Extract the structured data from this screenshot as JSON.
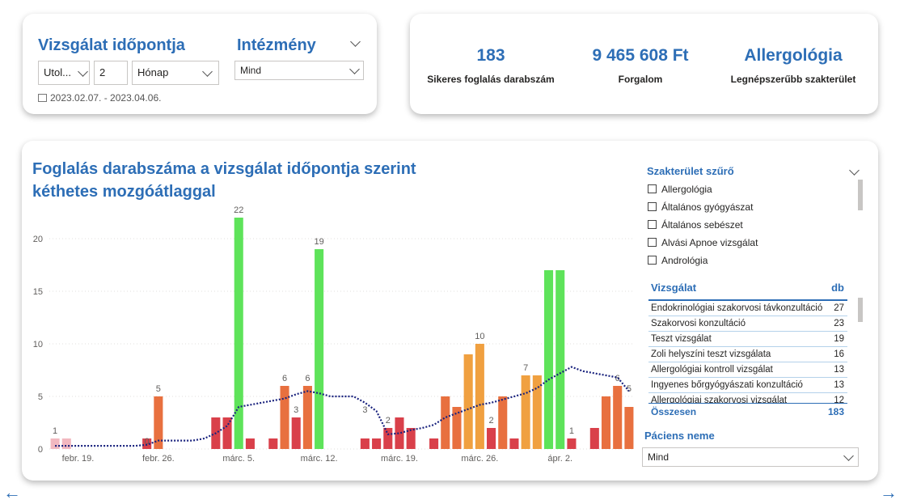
{
  "filters": {
    "date_title": "Vizsgálat időpontja",
    "period_mode": "Utol...",
    "period_count": "2",
    "period_unit": "Hónap",
    "date_range": "2023.02.07. - 2023.04.06.",
    "institution_title": "Intézmény",
    "institution_value": "Mind"
  },
  "kpis": [
    {
      "value": "183",
      "label": "Sikeres foglalás darabszám"
    },
    {
      "value": "9 465 608 Ft",
      "label": "Forgalom"
    },
    {
      "value": "Allergológia",
      "label": "Legnépszerűbb szakterület"
    }
  ],
  "chart": {
    "title_line1": "Foglalás darabszáma a vizsgálat időpontja szerint",
    "title_line2": "kéthetes mozgóátlaggal"
  },
  "chart_data": {
    "type": "bar",
    "ylim": [
      0,
      22
    ],
    "yticks": [
      0,
      5,
      10,
      15,
      20
    ],
    "xticks": [
      "febr. 19.",
      "febr. 26.",
      "márc. 5.",
      "márc. 12.",
      "márc. 19.",
      "márc. 26.",
      "ápr. 2."
    ],
    "series": [
      {
        "values": [
          1,
          1,
          null,
          null,
          null,
          null,
          null,
          null,
          1,
          5,
          null,
          null,
          null,
          null,
          3,
          3,
          22,
          1,
          null,
          1,
          6,
          3,
          6,
          19,
          null,
          null,
          null,
          1,
          1,
          2,
          3,
          2,
          null,
          1,
          5,
          4,
          9,
          10,
          2,
          5,
          1,
          7,
          7,
          17,
          17,
          1,
          null,
          2,
          5,
          6,
          4
        ]
      },
      {
        "name": "kéthetes mozgóátlag",
        "type": "line"
      }
    ],
    "grid": true
  },
  "bar_colors": {
    "high": "#5ee35a",
    "mid": "#f0a040",
    "low": "#d9404a",
    "pale": "#f2b8c0"
  },
  "specialty_filter": {
    "title": "Szakterület szűrő",
    "items": [
      "Allergológia",
      "Általános gyógyászat",
      "Általános sebészet",
      "Alvási Apnoe vizsgálat",
      "Andrológia"
    ]
  },
  "table": {
    "col1": "Vizsgálat",
    "col2": "db",
    "rows": [
      {
        "name": "Endokrinológiai szakorvosi távkonzultáció",
        "db": "27"
      },
      {
        "name": "Szakorvosi konzultáció",
        "db": "23"
      },
      {
        "name": "Teszt vizsgálat",
        "db": "19"
      },
      {
        "name": "Zoli helyszíni teszt vizsgálata",
        "db": "16"
      },
      {
        "name": "Allergológiai kontroll vizsgálat",
        "db": "13"
      },
      {
        "name": "Ingyenes bőrgyógyászati konzultáció",
        "db": "13"
      },
      {
        "name": "Allergológiai szakorvosi vizsgálat",
        "db": "12"
      }
    ],
    "total_label": "Összesen",
    "total_value": "183"
  },
  "patient": {
    "title": "Páciens neme",
    "value": "Mind"
  },
  "nav": {
    "prev": "←",
    "next": "→"
  }
}
